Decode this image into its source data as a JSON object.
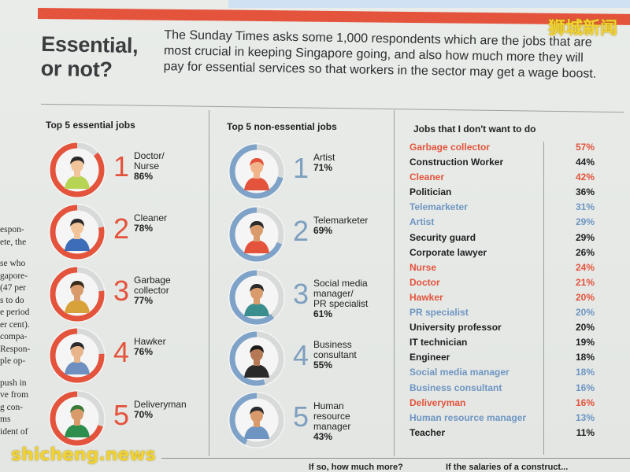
{
  "watermarks": {
    "top": "狮城新闻",
    "bottom": "shicheng.news"
  },
  "headline": {
    "line1": "Essential,",
    "line2": "or not?"
  },
  "intro": "The Sunday Times asks some 1,000 respondents which are the jobs that are most crucial in keeping Singapore going, and also how much more they will pay for essential services so that workers in the sector may get a wage boost.",
  "side_text": [
    "espon-",
    "ete, the",
    "",
    "se who",
    "gapore-",
    "(47 per",
    "s to do",
    "e period",
    "er cent).",
    "compa-",
    "Respon-",
    "ple op-",
    "",
    "push in",
    "ve from",
    "g con-",
    "ms",
    "ident of"
  ],
  "essential": {
    "title": "Top 5 essential jobs",
    "items": [
      {
        "rank": "1",
        "label": "Doctor/\nNurse",
        "pct": "86%",
        "value": 86,
        "avatar": "doctor-nurse-icon"
      },
      {
        "rank": "2",
        "label": "Cleaner",
        "pct": "78%",
        "value": 78,
        "avatar": "cleaner-icon"
      },
      {
        "rank": "3",
        "label": "Garbage\ncollector",
        "pct": "77%",
        "value": 77,
        "avatar": "garbage-collector-icon"
      },
      {
        "rank": "4",
        "label": "Hawker",
        "pct": "76%",
        "value": 76,
        "avatar": "hawker-icon"
      },
      {
        "rank": "5",
        "label": "Deliveryman",
        "pct": "70%",
        "value": 70,
        "avatar": "deliveryman-icon"
      }
    ]
  },
  "nonessential": {
    "title": "Top 5 non-essential jobs",
    "items": [
      {
        "rank": "1",
        "label": "Artist",
        "pct": "71%",
        "value": 71,
        "avatar": "artist-icon"
      },
      {
        "rank": "2",
        "label": "Telemarketer",
        "pct": "69%",
        "value": 69,
        "avatar": "telemarketer-icon"
      },
      {
        "rank": "3",
        "label": "Social media\nmanager/\nPR specialist",
        "pct": "61%",
        "value": 61,
        "avatar": "social-media-manager-icon"
      },
      {
        "rank": "4",
        "label": "Business\nconsultant",
        "pct": "55%",
        "value": 55,
        "avatar": "business-consultant-icon"
      },
      {
        "rank": "5",
        "label": "Human\nresource\nmanager",
        "pct": "43%",
        "value": 43,
        "avatar": "hr-manager-icon"
      }
    ]
  },
  "dont_want": {
    "title": "Jobs that I don't want to do",
    "rows": [
      {
        "job": "Garbage collector",
        "pct": "57%",
        "color": "red"
      },
      {
        "job": "Construction Worker",
        "pct": "44%",
        "color": "black"
      },
      {
        "job": "Cleaner",
        "pct": "42%",
        "color": "red"
      },
      {
        "job": "Politician",
        "pct": "36%",
        "color": "black"
      },
      {
        "job": "Telemarketer",
        "pct": "31%",
        "color": "blue"
      },
      {
        "job": "Artist",
        "pct": "29%",
        "color": "blue"
      },
      {
        "job": "Security guard",
        "pct": "29%",
        "color": "black"
      },
      {
        "job": "Corporate lawyer",
        "pct": "26%",
        "color": "black"
      },
      {
        "job": "Nurse",
        "pct": "24%",
        "color": "red"
      },
      {
        "job": "Doctor",
        "pct": "21%",
        "color": "red"
      },
      {
        "job": "Hawker",
        "pct": "20%",
        "color": "red"
      },
      {
        "job": "PR specialist",
        "pct": "20%",
        "color": "blue"
      },
      {
        "job": "University professor",
        "pct": "20%",
        "color": "black"
      },
      {
        "job": "IT technician",
        "pct": "19%",
        "color": "black"
      },
      {
        "job": "Engineer",
        "pct": "18%",
        "color": "black"
      },
      {
        "job": "Social media manager",
        "pct": "18%",
        "color": "blue"
      },
      {
        "job": "Business consultant",
        "pct": "16%",
        "color": "blue"
      },
      {
        "job": "Deliveryman",
        "pct": "16%",
        "color": "red"
      },
      {
        "job": "Human resource manager",
        "pct": "13%",
        "color": "blue"
      },
      {
        "job": "Teacher",
        "pct": "11%",
        "color": "black"
      }
    ]
  },
  "bottom_questions": {
    "q1": "If so, how much more?",
    "q2": "If the salaries of a construct..."
  },
  "colors": {
    "red": "#e4533c",
    "blue": "#6e95c2",
    "black": "#1e1f20",
    "track": "#d8d9d9",
    "ring_blue": "#7fa3c8"
  }
}
